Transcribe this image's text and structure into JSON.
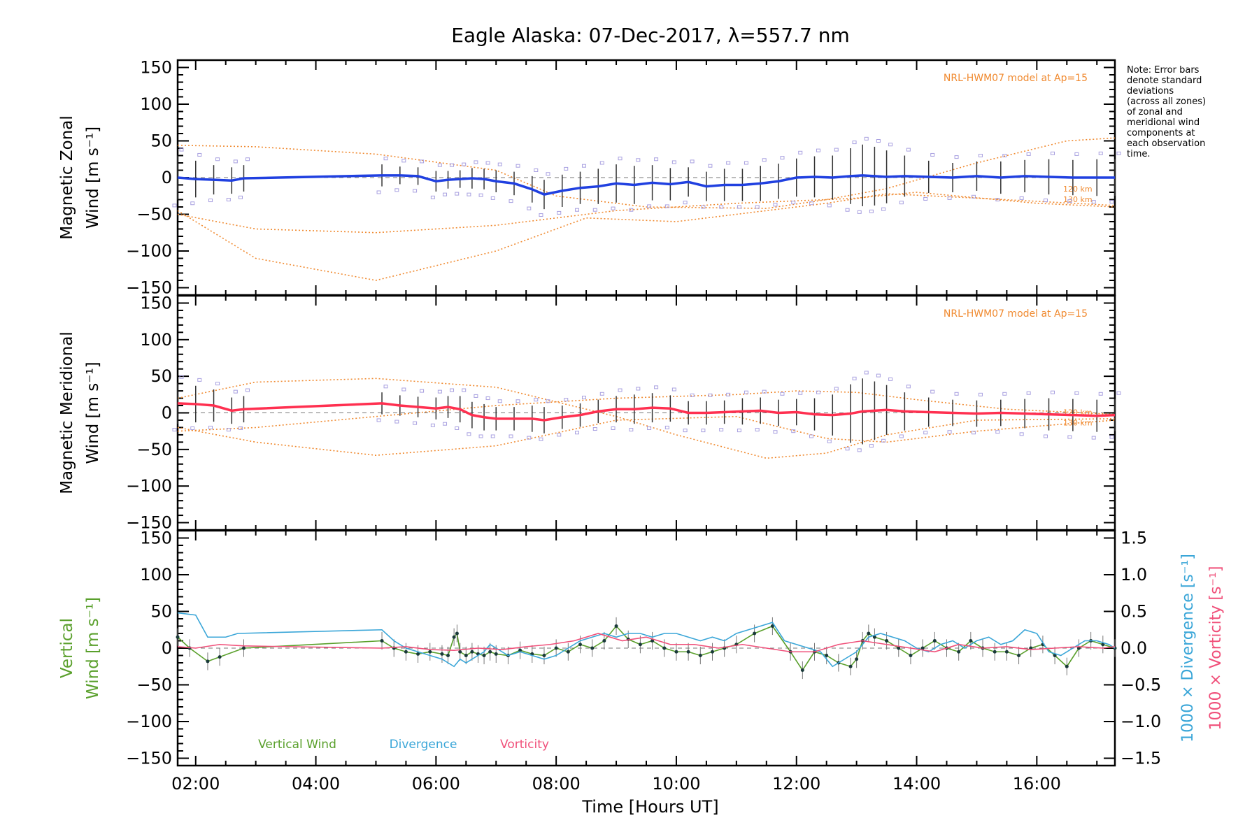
{
  "title": "Eagle Alaska: 07-Dec-2017, λ=557.7 nm",
  "note": [
    "Note: Error bars",
    "denote standard",
    "deviations",
    "(across all zones)",
    "of zonal and",
    "meridional wind",
    "components at",
    "each observation",
    "time."
  ],
  "model_label": "NRL-HWM07 model at Ap=15",
  "model_alt_labels": [
    "120 km",
    "130 km"
  ],
  "xlabel": "Time [Hours UT]",
  "colors": {
    "zonal": "#2040e0",
    "meridional": "#ff3050",
    "vertical": "#5aa02c",
    "divergence": "#3aa6d8",
    "vorticity": "#f0507a",
    "model": "#f08a30",
    "scatter": "#a8a0e0"
  },
  "chart_data": [
    {
      "type": "line",
      "panel": "zonal",
      "ylabel": [
        "Magnetic Zonal",
        "Wind [m s⁻¹]"
      ],
      "x_ticks": [
        "02:00",
        "04:00",
        "06:00",
        "08:00",
        "10:00",
        "12:00",
        "14:00",
        "16:00"
      ],
      "y_ticks": [
        "150",
        "100",
        "50",
        "0",
        "−50",
        "−100",
        "−150"
      ],
      "xlim": [
        1.7,
        17.3
      ],
      "ylim": [
        -160,
        160
      ],
      "series": [
        {
          "name": "Magnetic Zonal Wind",
          "x": [
            1.7,
            2.0,
            2.3,
            2.6,
            2.8,
            5.1,
            5.4,
            5.7,
            6.0,
            6.2,
            6.4,
            6.6,
            6.8,
            7.0,
            7.3,
            7.6,
            7.8,
            8.1,
            8.4,
            8.7,
            9.0,
            9.3,
            9.6,
            9.9,
            10.2,
            10.5,
            10.8,
            11.1,
            11.4,
            11.7,
            12.0,
            12.3,
            12.6,
            12.9,
            13.1,
            13.3,
            13.5,
            13.8,
            14.2,
            14.6,
            15.0,
            15.4,
            15.8,
            16.2,
            16.6,
            17.0,
            17.3
          ],
          "values": [
            0,
            -2,
            -3,
            -4,
            -1,
            3,
            3,
            2,
            -5,
            -3,
            -2,
            -1,
            -2,
            -5,
            -8,
            -16,
            -23,
            -18,
            -14,
            -12,
            -8,
            -10,
            -7,
            -9,
            -6,
            -12,
            -10,
            -10,
            -8,
            -5,
            0,
            1,
            0,
            2,
            3,
            2,
            1,
            2,
            1,
            0,
            2,
            0,
            2,
            1,
            0,
            0,
            0
          ],
          "error": [
            30,
            25,
            20,
            18,
            18,
            15,
            12,
            12,
            14,
            12,
            12,
            14,
            14,
            15,
            16,
            18,
            20,
            22,
            22,
            24,
            26,
            26,
            24,
            22,
            20,
            20,
            22,
            22,
            24,
            24,
            26,
            28,
            30,
            38,
            42,
            40,
            36,
            28,
            22,
            20,
            20,
            22,
            22,
            24,
            24,
            25,
            25
          ]
        }
      ],
      "model_lines": [
        {
          "name": "120 km",
          "x": [
            1.7,
            3.0,
            5.0,
            7.0,
            9.0,
            11.0,
            12.5,
            13.0,
            14.0,
            16.0,
            17.3
          ],
          "values": [
            -50,
            -70,
            -75,
            -65,
            -45,
            -35,
            -30,
            -28,
            -20,
            -35,
            -40
          ]
        },
        {
          "name": "130 km",
          "x": [
            1.7,
            3.0,
            5.0,
            7.0,
            8.5,
            10.0,
            11.5,
            12.5,
            13.5,
            15.0,
            17.3
          ],
          "values": [
            -45,
            -110,
            -140,
            -100,
            -55,
            -60,
            -45,
            -35,
            -22,
            -28,
            -38
          ]
        },
        {
          "name": "upper",
          "x": [
            1.7,
            3.0,
            5.0,
            7.0,
            8.0,
            9.5,
            11.5,
            12.5,
            13.5,
            15.0,
            16.5,
            17.3
          ],
          "values": [
            44,
            42,
            32,
            10,
            -25,
            -40,
            -42,
            -30,
            -15,
            20,
            50,
            54
          ]
        }
      ]
    },
    {
      "type": "line",
      "panel": "meridional",
      "ylabel": [
        "Magnetic Meridional",
        "Wind [m s⁻¹]"
      ],
      "x_ticks": [
        "02:00",
        "04:00",
        "06:00",
        "08:00",
        "10:00",
        "12:00",
        "14:00",
        "16:00"
      ],
      "y_ticks": [
        "150",
        "100",
        "50",
        "0",
        "−50",
        "−100",
        "−150"
      ],
      "xlim": [
        1.7,
        17.3
      ],
      "ylim": [
        -160,
        160
      ],
      "series": [
        {
          "name": "Magnetic Meridional Wind",
          "x": [
            1.7,
            2.0,
            2.3,
            2.6,
            2.8,
            5.1,
            5.4,
            5.7,
            6.0,
            6.2,
            6.4,
            6.6,
            6.8,
            7.0,
            7.3,
            7.6,
            7.8,
            8.1,
            8.4,
            8.7,
            9.0,
            9.3,
            9.6,
            9.9,
            10.2,
            10.5,
            10.8,
            11.1,
            11.4,
            11.7,
            12.0,
            12.3,
            12.6,
            12.9,
            13.1,
            13.3,
            13.5,
            13.8,
            14.2,
            14.6,
            15.0,
            15.4,
            15.8,
            16.2,
            16.6,
            17.0,
            17.3
          ],
          "values": [
            13,
            12,
            10,
            3,
            5,
            13,
            10,
            8,
            6,
            8,
            5,
            -3,
            -6,
            -8,
            -8,
            -8,
            -10,
            -6,
            -3,
            2,
            5,
            5,
            7,
            6,
            0,
            0,
            1,
            2,
            3,
            0,
            1,
            -2,
            -3,
            -1,
            2,
            3,
            4,
            2,
            1,
            0,
            -1,
            0,
            -1,
            -2,
            -3,
            -4,
            -3
          ],
          "error": [
            28,
            25,
            22,
            18,
            18,
            15,
            14,
            14,
            15,
            15,
            18,
            18,
            18,
            16,
            16,
            18,
            18,
            16,
            16,
            16,
            18,
            20,
            20,
            18,
            16,
            16,
            16,
            18,
            18,
            18,
            18,
            22,
            28,
            40,
            45,
            40,
            34,
            26,
            20,
            18,
            18,
            18,
            20,
            22,
            22,
            22,
            22
          ]
        }
      ],
      "model_lines": [
        {
          "name": "120 km",
          "x": [
            1.7,
            3.0,
            5.0,
            7.0,
            9.0,
            11.0,
            12.5,
            13.5,
            15.0,
            16.5,
            17.3
          ],
          "values": [
            -20,
            -40,
            -58,
            -45,
            -10,
            -5,
            -35,
            -40,
            -25,
            -15,
            -10
          ]
        },
        {
          "name": "130 km",
          "x": [
            1.7,
            3.0,
            5.0,
            7.0,
            9.0,
            10.0,
            11.5,
            12.5,
            13.5,
            15.0,
            17.3
          ],
          "values": [
            20,
            42,
            47,
            35,
            -5,
            -30,
            -62,
            -55,
            -30,
            -10,
            -8
          ]
        },
        {
          "name": "upper",
          "x": [
            1.7,
            3.0,
            5.0,
            7.0,
            9.0,
            11.0,
            12.0,
            13.0,
            14.0,
            15.5,
            17.3
          ],
          "values": [
            -25,
            -20,
            -5,
            10,
            20,
            25,
            30,
            28,
            18,
            5,
            -2
          ]
        }
      ]
    },
    {
      "type": "line",
      "panel": "vertical",
      "ylabel_left": [
        "Vertical",
        "Wind [m s⁻¹]"
      ],
      "ylabel_right": [
        "1000 × Divergence [s⁻¹]",
        "1000 × Vorticity [s⁻¹]"
      ],
      "x_ticks": [
        "02:00",
        "04:00",
        "06:00",
        "08:00",
        "10:00",
        "12:00",
        "14:00",
        "16:00"
      ],
      "y_ticks": [
        "150",
        "100",
        "50",
        "0",
        "−50",
        "−100",
        "−150"
      ],
      "y2_ticks": [
        "1.5",
        "1.0",
        "0.5",
        "0.0",
        "−0.5",
        "−1.0",
        "−1.5"
      ],
      "xlim": [
        1.7,
        17.3
      ],
      "ylim": [
        -160,
        160
      ],
      "y2lim": [
        -1.6,
        1.6
      ],
      "legend": [
        "Vertical Wind",
        "Divergence",
        "Vorticity"
      ],
      "series": [
        {
          "name": "Vertical Wind",
          "axis": "left",
          "x": [
            1.7,
            1.9,
            2.2,
            2.4,
            2.8,
            5.1,
            5.3,
            5.5,
            5.7,
            5.9,
            6.1,
            6.2,
            6.3,
            6.35,
            6.4,
            6.5,
            6.6,
            6.7,
            6.8,
            6.9,
            7.0,
            7.2,
            7.4,
            7.6,
            7.8,
            8.0,
            8.2,
            8.4,
            8.6,
            8.8,
            9.0,
            9.2,
            9.4,
            9.6,
            9.8,
            10.0,
            10.2,
            10.4,
            10.6,
            10.8,
            11.0,
            11.3,
            11.6,
            11.9,
            12.1,
            12.3,
            12.5,
            12.7,
            12.9,
            13.0,
            13.1,
            13.2,
            13.3,
            13.5,
            13.7,
            13.9,
            14.1,
            14.3,
            14.5,
            14.7,
            14.9,
            15.1,
            15.3,
            15.5,
            15.7,
            15.9,
            16.1,
            16.3,
            16.5,
            16.7,
            16.9,
            17.1,
            17.3
          ],
          "values": [
            15,
            0,
            -18,
            -12,
            0,
            10,
            0,
            -5,
            -8,
            -5,
            -8,
            -10,
            15,
            20,
            -5,
            -10,
            -5,
            -8,
            -10,
            -5,
            -8,
            -10,
            -3,
            -8,
            -10,
            0,
            -5,
            5,
            0,
            10,
            30,
            12,
            5,
            10,
            0,
            -5,
            -5,
            -10,
            -5,
            0,
            5,
            20,
            30,
            -5,
            -30,
            -5,
            -10,
            -20,
            -25,
            -15,
            10,
            20,
            15,
            10,
            0,
            -10,
            0,
            10,
            0,
            -5,
            10,
            0,
            -5,
            -5,
            -10,
            0,
            5,
            -10,
            -25,
            0,
            10,
            5,
            0
          ]
        },
        {
          "name": "Divergence",
          "axis": "right",
          "x": [
            1.7,
            2.0,
            2.2,
            2.5,
            2.7,
            5.1,
            5.3,
            5.5,
            5.7,
            5.9,
            6.1,
            6.2,
            6.3,
            6.4,
            6.5,
            6.6,
            6.7,
            6.8,
            6.9,
            7.0,
            7.2,
            7.4,
            7.6,
            7.8,
            8.0,
            8.2,
            8.4,
            8.6,
            8.8,
            9.0,
            9.2,
            9.4,
            9.6,
            9.8,
            10.0,
            10.2,
            10.4,
            10.6,
            10.8,
            11.0,
            11.2,
            11.4,
            11.6,
            11.8,
            12.0,
            12.2,
            12.4,
            12.6,
            12.8,
            13.0,
            13.2,
            13.4,
            13.6,
            13.8,
            14.0,
            14.2,
            14.4,
            14.6,
            14.8,
            15.0,
            15.2,
            15.4,
            15.6,
            15.8,
            16.0,
            16.2,
            16.4,
            16.6,
            16.8,
            17.0,
            17.2,
            17.3
          ],
          "values": [
            0.48,
            0.45,
            0.15,
            0.15,
            0.2,
            0.25,
            0.1,
            0.0,
            -0.05,
            -0.1,
            -0.15,
            -0.2,
            -0.25,
            -0.15,
            -0.2,
            -0.15,
            -0.1,
            -0.05,
            0.05,
            0.0,
            -0.1,
            -0.05,
            -0.1,
            -0.15,
            -0.1,
            0.0,
            0.1,
            0.15,
            0.2,
            0.15,
            0.2,
            0.2,
            0.15,
            0.2,
            0.2,
            0.15,
            0.1,
            0.15,
            0.1,
            0.2,
            0.25,
            0.3,
            0.35,
            0.1,
            0.05,
            0.0,
            -0.05,
            -0.25,
            -0.15,
            -0.05,
            0.15,
            0.2,
            0.15,
            0.1,
            0.0,
            -0.05,
            0.05,
            0.1,
            0.0,
            0.1,
            0.15,
            0.05,
            0.1,
            0.25,
            0.2,
            -0.05,
            -0.1,
            0.0,
            0.1,
            0.1,
            0.05,
            0.0
          ]
        },
        {
          "name": "Vorticity",
          "axis": "right",
          "x": [
            1.7,
            2.0,
            2.4,
            2.8,
            5.1,
            5.5,
            5.9,
            6.3,
            6.7,
            7.1,
            7.5,
            7.9,
            8.3,
            8.7,
            9.1,
            9.5,
            9.9,
            10.3,
            10.7,
            11.1,
            11.5,
            11.9,
            12.3,
            12.7,
            13.1,
            13.5,
            13.9,
            14.3,
            14.7,
            15.1,
            15.5,
            15.9,
            16.3,
            16.7,
            17.1,
            17.3
          ],
          "values": [
            0.02,
            0.0,
            0.05,
            0.03,
            0.0,
            0.02,
            -0.02,
            -0.03,
            0.0,
            -0.02,
            0.02,
            0.05,
            0.1,
            0.2,
            0.1,
            0.15,
            0.05,
            0.05,
            0.0,
            0.05,
            0.0,
            -0.05,
            -0.05,
            0.05,
            0.1,
            0.05,
            0.0,
            -0.05,
            0.05,
            0.0,
            0.02,
            -0.02,
            0.0,
            0.02,
            0.0,
            0.02
          ]
        }
      ]
    }
  ]
}
